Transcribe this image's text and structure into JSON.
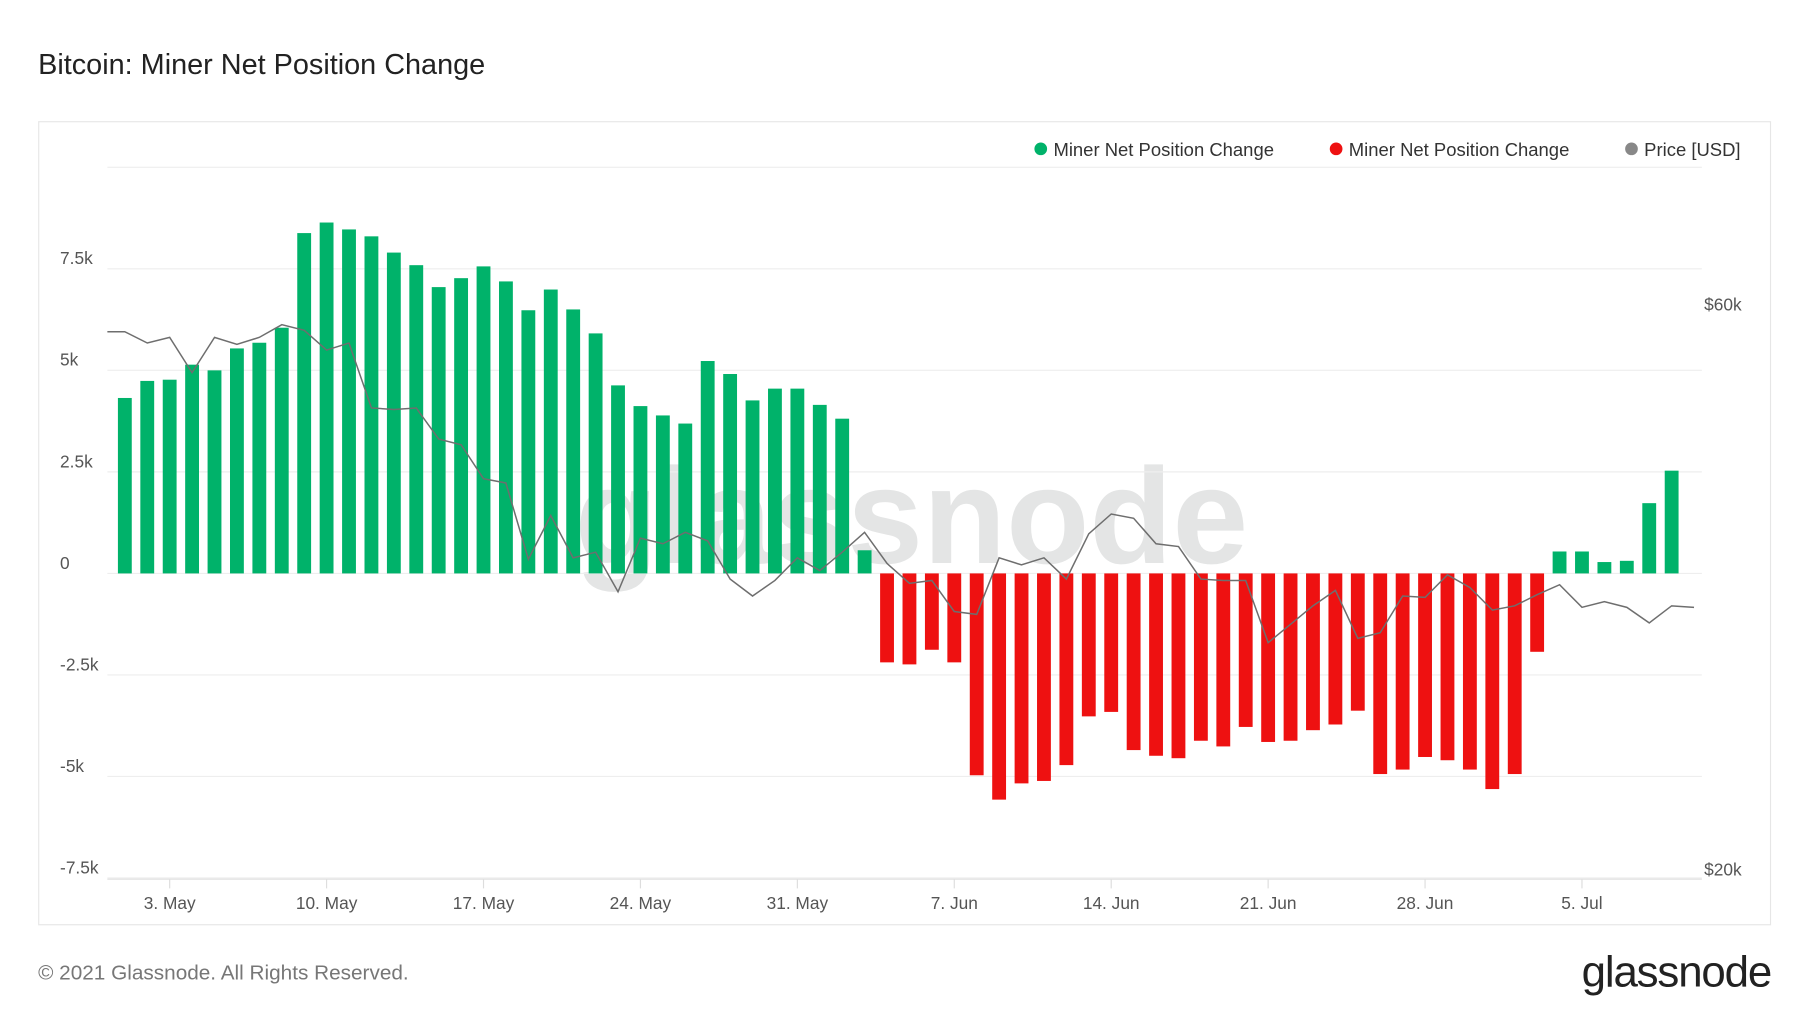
{
  "title": "Bitcoin: Miner Net Position Change",
  "footer": {
    "copyright": "© 2021 Glassnode. All Rights Reserved.",
    "logo": "glassnode"
  },
  "watermark": "glassnode",
  "colors": {
    "positive": "#00b26a",
    "negative": "#ee1111",
    "price": "#6e6e6e",
    "grid": "#eeeeee"
  },
  "chart_data": {
    "type": "bar",
    "title": "Bitcoin: Miner Net Position Change",
    "legend": {
      "placement": "top-right",
      "entries": [
        {
          "label": "Miner Net Position Change",
          "color": "#00b26a"
        },
        {
          "label": "Miner Net Position Change",
          "color": "#ee1111"
        },
        {
          "label": "Price [USD]",
          "color": "#888888"
        }
      ]
    },
    "x_ticks": [
      {
        "date": "2021-05-03",
        "label": "3. May"
      },
      {
        "date": "2021-05-10",
        "label": "10. May"
      },
      {
        "date": "2021-05-17",
        "label": "17. May"
      },
      {
        "date": "2021-05-24",
        "label": "24. May"
      },
      {
        "date": "2021-05-31",
        "label": "31. May"
      },
      {
        "date": "2021-06-07",
        "label": "7. Jun"
      },
      {
        "date": "2021-06-14",
        "label": "14. Jun"
      },
      {
        "date": "2021-06-21",
        "label": "21. Jun"
      },
      {
        "date": "2021-06-28",
        "label": "28. Jun"
      },
      {
        "date": "2021-07-05",
        "label": "5. Jul"
      }
    ],
    "y_left": {
      "ticks": [
        -7500,
        -5000,
        -2500,
        0,
        2500,
        5000,
        7500
      ],
      "labels": [
        "-7.5k",
        "-5k",
        "-2.5k",
        "0",
        "2.5k",
        "5k",
        "7.5k"
      ],
      "range": [
        -7500,
        10000
      ],
      "grid": true
    },
    "y_right": {
      "ticks": [
        20000,
        60000
      ],
      "labels": [
        "$20k",
        "$60k"
      ],
      "range": [
        19400,
        69800
      ]
    },
    "bars": {
      "start_date": "2021-05-01",
      "values": [
        4320,
        4740,
        4770,
        5140,
        5000,
        5540,
        5680,
        6050,
        8380,
        8640,
        8470,
        8300,
        7900,
        7590,
        7050,
        7270,
        7560,
        7190,
        6480,
        6990,
        6500,
        5910,
        4630,
        4120,
        3890,
        3690,
        5230,
        4910,
        4260,
        4550,
        4550,
        4150,
        3810,
        570,
        -2190,
        -2240,
        -1880,
        -2190,
        -4970,
        -5570,
        -5170,
        -5110,
        -4720,
        -3520,
        -3410,
        -4350,
        -4490,
        -4550,
        -4120,
        -4260,
        -3780,
        -4150,
        -4120,
        -3860,
        -3720,
        -3380,
        -4940,
        -4830,
        -4520,
        -4600,
        -4830,
        -5310,
        -4940,
        -1930,
        540,
        540,
        280,
        310,
        1730,
        2530
      ]
    },
    "price": {
      "start_date": "2021-04-30",
      "values": [
        58000,
        58000,
        57200,
        57600,
        55100,
        57600,
        57100,
        57600,
        58500,
        58100,
        56700,
        57200,
        52600,
        52500,
        52600,
        50400,
        50000,
        47600,
        47300,
        41900,
        45000,
        42000,
        42400,
        39600,
        43400,
        43000,
        43800,
        43200,
        40500,
        39300,
        40400,
        42000,
        41100,
        42400,
        43800,
        41600,
        40200,
        40400,
        38200,
        38000,
        42000,
        41500,
        42000,
        40500,
        43700,
        45100,
        44800,
        43000,
        42800,
        40500,
        40400,
        40400,
        36000,
        37300,
        38600,
        39700,
        36300,
        36700,
        39300,
        39200,
        40800,
        39900,
        38300,
        38600,
        39400,
        40100,
        38500,
        38900,
        38500,
        37400,
        38600,
        38500
      ]
    }
  }
}
